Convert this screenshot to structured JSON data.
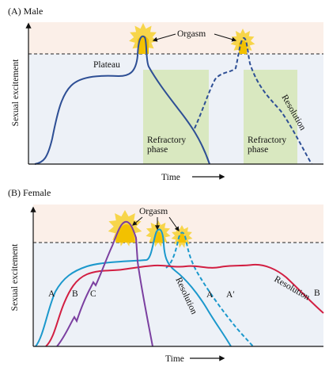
{
  "panel_a": {
    "title": "(A)  Male",
    "ylabel": "Sexual excitement",
    "xlabel": "Time",
    "orgasm": "Orgasm",
    "plateau": "Plateau",
    "refractory_1": [
      "Refractory",
      "phase"
    ],
    "refractory_2": [
      "Refractory",
      "phase"
    ],
    "resolution": "Resolution"
  },
  "panel_b": {
    "title": "(B)  Female",
    "ylabel": "Sexual excitement",
    "xlabel": "Time",
    "orgasm": "Orgasm",
    "curve_a": "A",
    "curve_b": "B",
    "curve_c": "C",
    "curve_a_end": "A",
    "curve_a_prime": "A′",
    "curve_b_end": "B",
    "resolution_1": "Resolution",
    "resolution_2": "Resolution"
  },
  "colors": {
    "upper_band": "#fbefe8",
    "lower_band": "#edf1f7",
    "refractory": "#d9e8c0",
    "sun": "#f7d54a",
    "sun_peak": "#f3c100",
    "male_curve": "#2e4f95",
    "female_a": "#1b98cc",
    "female_b": "#d21f42",
    "female_c": "#7b3fa0"
  }
}
